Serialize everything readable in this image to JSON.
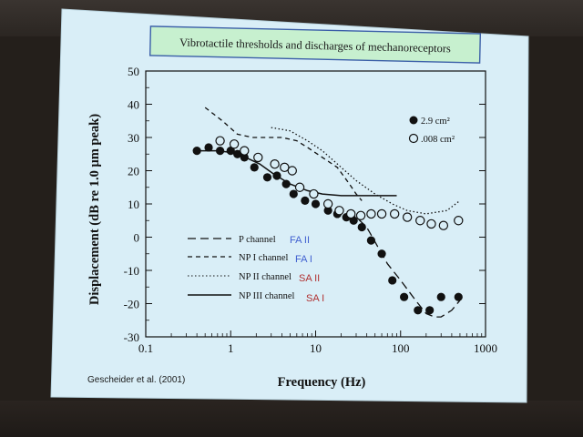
{
  "slide": {
    "title": "Vibrotactile  thresholds and discharges  of mechanoreceptors",
    "citation": "Gescheider et al. (2001)"
  },
  "colors": {
    "slide_bg": "#d9eef7",
    "title_box_bg": "#c7f0cf",
    "title_border": "#3b5fa8",
    "tag_blue": "#3f5fd0",
    "tag_red": "#b03030"
  },
  "chart_data": {
    "type": "line",
    "xlabel": "Frequency (Hz)",
    "ylabel": "Displacement (dB re 1.0 μm peak)",
    "x_scale": "log",
    "xlim": [
      0.1,
      1000
    ],
    "ylim": [
      -30,
      50
    ],
    "x_ticks": [
      "0.1",
      "1",
      "10",
      "100",
      "1000"
    ],
    "y_ticks": [
      "50",
      "40",
      "30",
      "20",
      "10",
      "0",
      "-10",
      "-20",
      "-30"
    ],
    "grid": false,
    "legend_markers": [
      {
        "label": "2.9 cm²",
        "marker": "filled-circle"
      },
      {
        "label": ".008 cm²",
        "marker": "open-circle"
      }
    ],
    "series": [
      {
        "name": "2.9 cm²",
        "marker": "filled-circle",
        "x": [
          0.4,
          0.55,
          0.75,
          1.0,
          1.2,
          1.45,
          1.9,
          2.7,
          3.5,
          4.5,
          5.5,
          7.5,
          10,
          14,
          18,
          23,
          28,
          35,
          45,
          60,
          80,
          110,
          160,
          220,
          300,
          480
        ],
        "y": [
          26,
          27,
          26,
          26,
          25,
          24,
          21,
          18,
          18.5,
          16,
          13,
          11,
          10,
          8,
          7,
          6,
          5,
          3,
          -1,
          -5,
          -13,
          -18,
          -22,
          -22,
          -18,
          -18
        ]
      },
      {
        "name": ".008 cm²",
        "marker": "open-circle",
        "x": [
          0.75,
          1.1,
          1.45,
          2.1,
          3.3,
          4.3,
          5.3,
          6.5,
          9.5,
          14,
          19,
          26,
          34,
          45,
          60,
          85,
          120,
          170,
          230,
          320,
          480
        ],
        "y": [
          29,
          28,
          26,
          24,
          22,
          21,
          20,
          15,
          13,
          10,
          8,
          7,
          6.5,
          7,
          7,
          7,
          6,
          5,
          4,
          3.5,
          5
        ]
      },
      {
        "name": "P channel",
        "tag": "FA II",
        "tag_color": "#3f5fd0",
        "style": "long-dash",
        "x": [
          0.3,
          1,
          2,
          4,
          8,
          15,
          25,
          40,
          70,
          100,
          150,
          200,
          250,
          300,
          400,
          500
        ],
        "y": [
          null,
          null,
          null,
          null,
          null,
          null,
          8,
          3,
          -8,
          -13,
          -19,
          -23,
          -24,
          -24,
          -22,
          -19
        ]
      },
      {
        "name": "NP I channel",
        "tag": "FA I",
        "tag_color": "#3f5fd0",
        "style": "short-dash",
        "x": [
          0.5,
          0.8,
          1.2,
          1.8,
          2.5,
          4,
          6,
          8,
          12,
          18,
          25,
          30,
          35
        ],
        "y": [
          39,
          35,
          31,
          30,
          30,
          30,
          29,
          27,
          24,
          21,
          16,
          13,
          11
        ]
      },
      {
        "name": "NP II channel",
        "tag": "SA II",
        "tag_color": "#b03030",
        "style": "dotted",
        "x": [
          3,
          5,
          8,
          12,
          20,
          30,
          50,
          80,
          120,
          200,
          350,
          500
        ],
        "y": [
          33,
          32,
          29,
          26,
          21,
          17,
          13,
          10,
          8,
          7,
          8,
          11
        ]
      },
      {
        "name": "NP III channel",
        "tag": "SA I",
        "tag_color": "#b03030",
        "style": "solid",
        "x": [
          0.4,
          0.7,
          1.0,
          1.5,
          2.2,
          3.2,
          5,
          8,
          12,
          20,
          35,
          55,
          90
        ],
        "y": [
          26,
          26,
          25.5,
          24,
          22,
          19,
          16,
          14,
          13,
          12.5,
          12.5,
          12.5,
          12.5
        ]
      }
    ]
  }
}
